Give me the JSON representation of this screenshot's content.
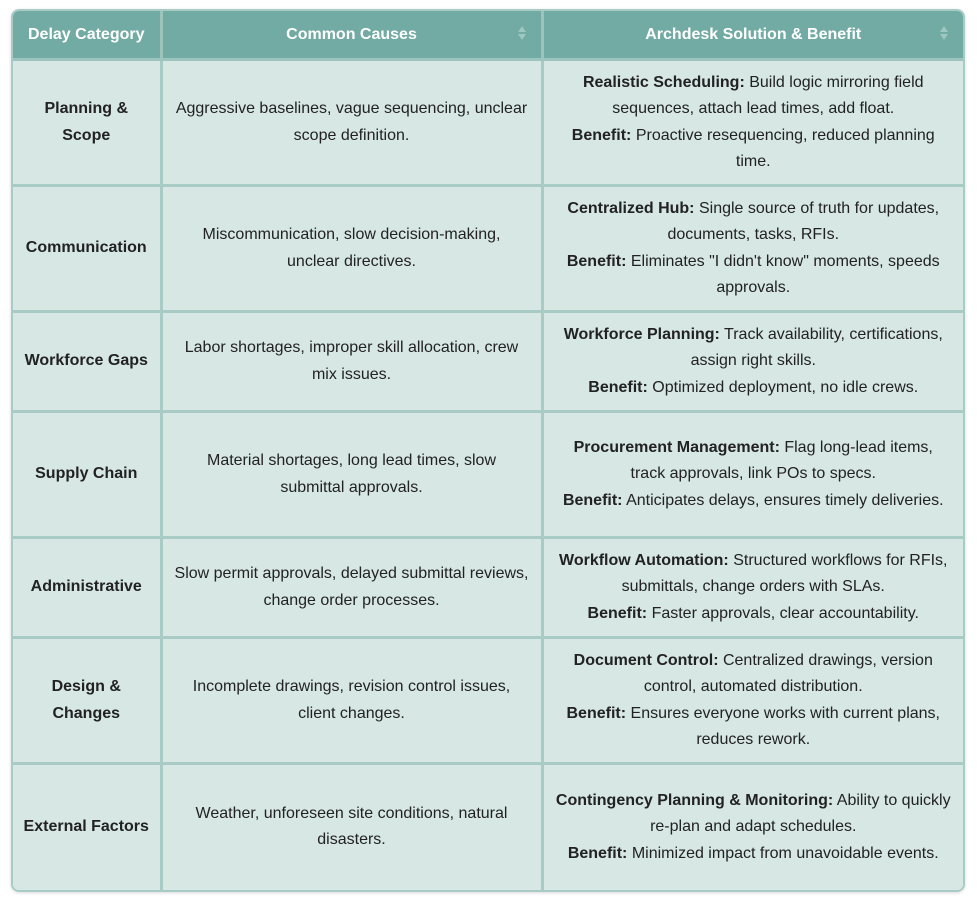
{
  "table": {
    "headers": [
      "Delay Category",
      "Common Causes",
      "Archdesk Solution & Benefit"
    ],
    "rows": [
      {
        "category": "Planning & Scope",
        "causes": "Aggressive baselines, vague sequencing, unclear scope definition.",
        "solution_label": "Realistic Scheduling:",
        "solution": "Build logic mirroring field sequences, attach lead times, add float.",
        "benefit_label": "Benefit:",
        "benefit": "Proactive resequencing, reduced planning time."
      },
      {
        "category": "Communication",
        "causes": "Miscommunication, slow decision-making, unclear directives.",
        "solution_label": "Centralized Hub:",
        "solution": "Single source of truth for updates, documents, tasks, RFIs.",
        "benefit_label": "Benefit:",
        "benefit": "Eliminates \"I didn't know\" moments, speeds approvals."
      },
      {
        "category": "Workforce Gaps",
        "causes": "Labor shortages, improper skill allocation, crew mix issues.",
        "solution_label": "Workforce Planning:",
        "solution": "Track availability, certifications, assign right skills.",
        "benefit_label": "Benefit:",
        "benefit": "Optimized deployment, no idle crews."
      },
      {
        "category": "Supply Chain",
        "causes": "Material shortages, long lead times, slow submittal approvals.",
        "solution_label": "Procurement Management:",
        "solution": "Flag long-lead items, track approvals, link POs to specs.",
        "benefit_label": "Benefit:",
        "benefit": "Anticipates delays, ensures timely deliveries."
      },
      {
        "category": "Administrative",
        "causes": "Slow permit approvals, delayed submittal reviews, change order processes.",
        "solution_label": "Workflow Automation:",
        "solution": "Structured workflows for RFIs, submittals, change orders with SLAs.",
        "benefit_label": "Benefit:",
        "benefit": "Faster approvals, clear accountability."
      },
      {
        "category": "Design & Changes",
        "causes": "Incomplete drawings, revision control issues, client changes.",
        "solution_label": "Document Control:",
        "solution": "Centralized drawings, version control, automated distribution.",
        "benefit_label": "Benefit:",
        "benefit": "Ensures everyone works with current plans, reduces rework."
      },
      {
        "category": "External Factors",
        "causes": "Weather, unforeseen site conditions, natural disasters.",
        "solution_label": "Contingency Planning & Monitoring:",
        "solution": "Ability to quickly re-plan and adapt schedules.",
        "benefit_label": "Benefit:",
        "benefit": "Minimized impact from unavoidable events."
      }
    ]
  }
}
